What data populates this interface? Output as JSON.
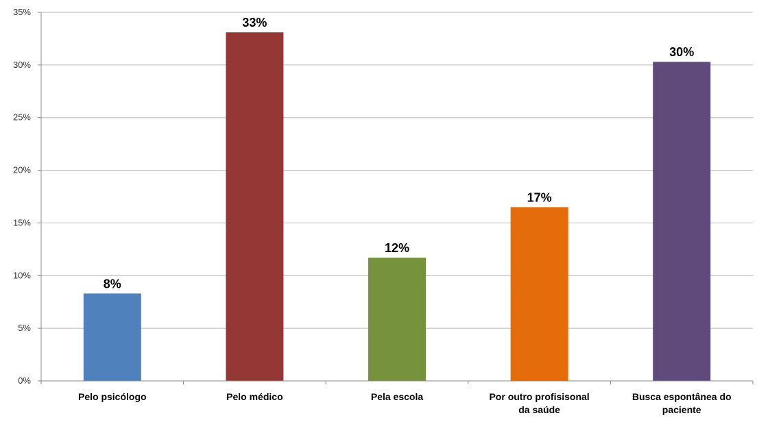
{
  "chart_data": {
    "type": "bar",
    "categories": [
      [
        "Pelo psicólogo"
      ],
      [
        "Pelo médico"
      ],
      [
        "Pela escola"
      ],
      [
        "Por outro profisisonal",
        "da saúde"
      ],
      [
        "Busca espontânea do",
        "paciente"
      ]
    ],
    "values": [
      8.3,
      33.1,
      11.7,
      16.5,
      30.3
    ],
    "data_labels": [
      "8%",
      "33%",
      "12%",
      "17%",
      "30%"
    ],
    "colors": [
      "#4f81bd",
      "#953735",
      "#76923c",
      "#e46c0a",
      "#604a7b"
    ],
    "ylim": [
      0,
      35
    ],
    "yticks": [
      "0%",
      "5%",
      "10%",
      "15%",
      "20%",
      "25%",
      "30%",
      "35%"
    ],
    "title": "",
    "xlabel": "",
    "ylabel": "",
    "grid": true,
    "legend": "none"
  }
}
